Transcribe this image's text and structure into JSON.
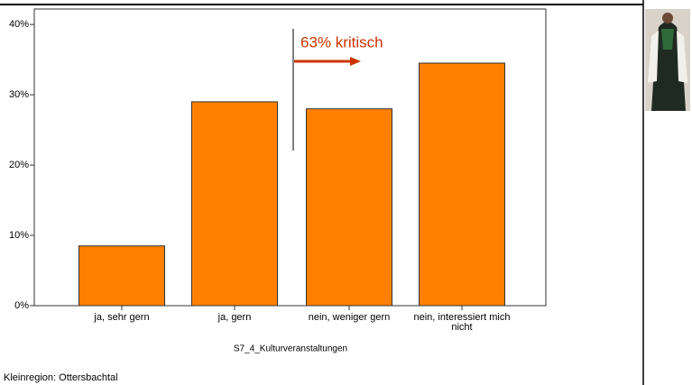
{
  "chart_data": {
    "type": "bar",
    "categories": [
      "ja, sehr gern",
      "ja, gern",
      "nein, weniger gern",
      "nein, interessiert mich nicht"
    ],
    "values": [
      8.5,
      29,
      28,
      34.5
    ],
    "color": "#ff8000",
    "xlabel": "S7_4_Kulturveranstaltungen",
    "annotation": "63% kritisch",
    "ylim": [
      0,
      42.2
    ],
    "yticks": [
      {
        "value": 0,
        "label": "0%"
      },
      {
        "value": 10,
        "label": "10%"
      },
      {
        "value": 20,
        "label": "20%"
      },
      {
        "value": 30,
        "label": "30%"
      },
      {
        "value": 40,
        "label": "40%"
      }
    ],
    "grid": false
  },
  "footer": "Kleinregion: Ottersbachtal"
}
